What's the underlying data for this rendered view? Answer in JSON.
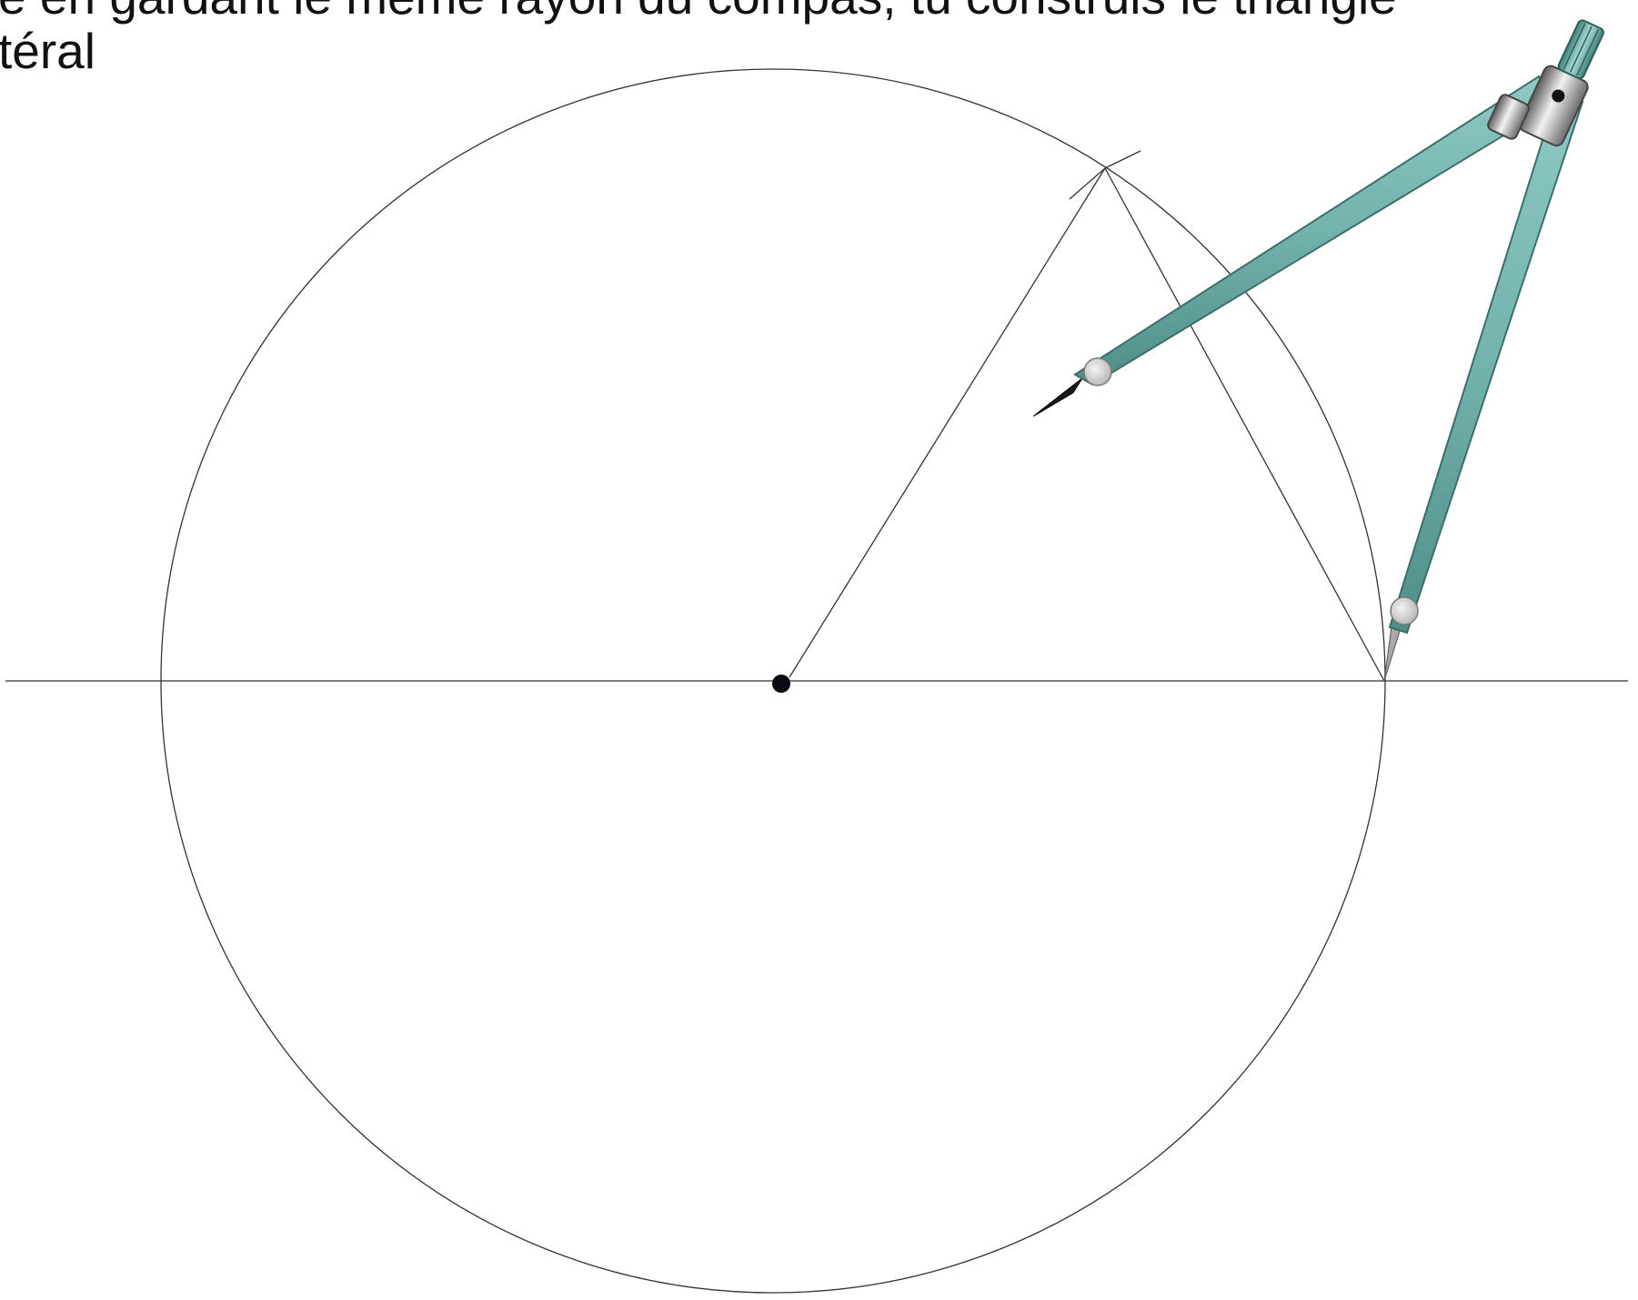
{
  "instruction": {
    "line1": "e en gardant le même rayon du compas, tu construis le triangle",
    "line2": "téral"
  },
  "icons": {
    "compass": "compass-icon",
    "center_point": "center-point-icon"
  },
  "colors": {
    "construction_line": "#333333",
    "compass_body": "#72b3ad",
    "compass_edge": "#3e6e69",
    "compass_head": "#9a9a9a",
    "point": "#0a0a14"
  }
}
